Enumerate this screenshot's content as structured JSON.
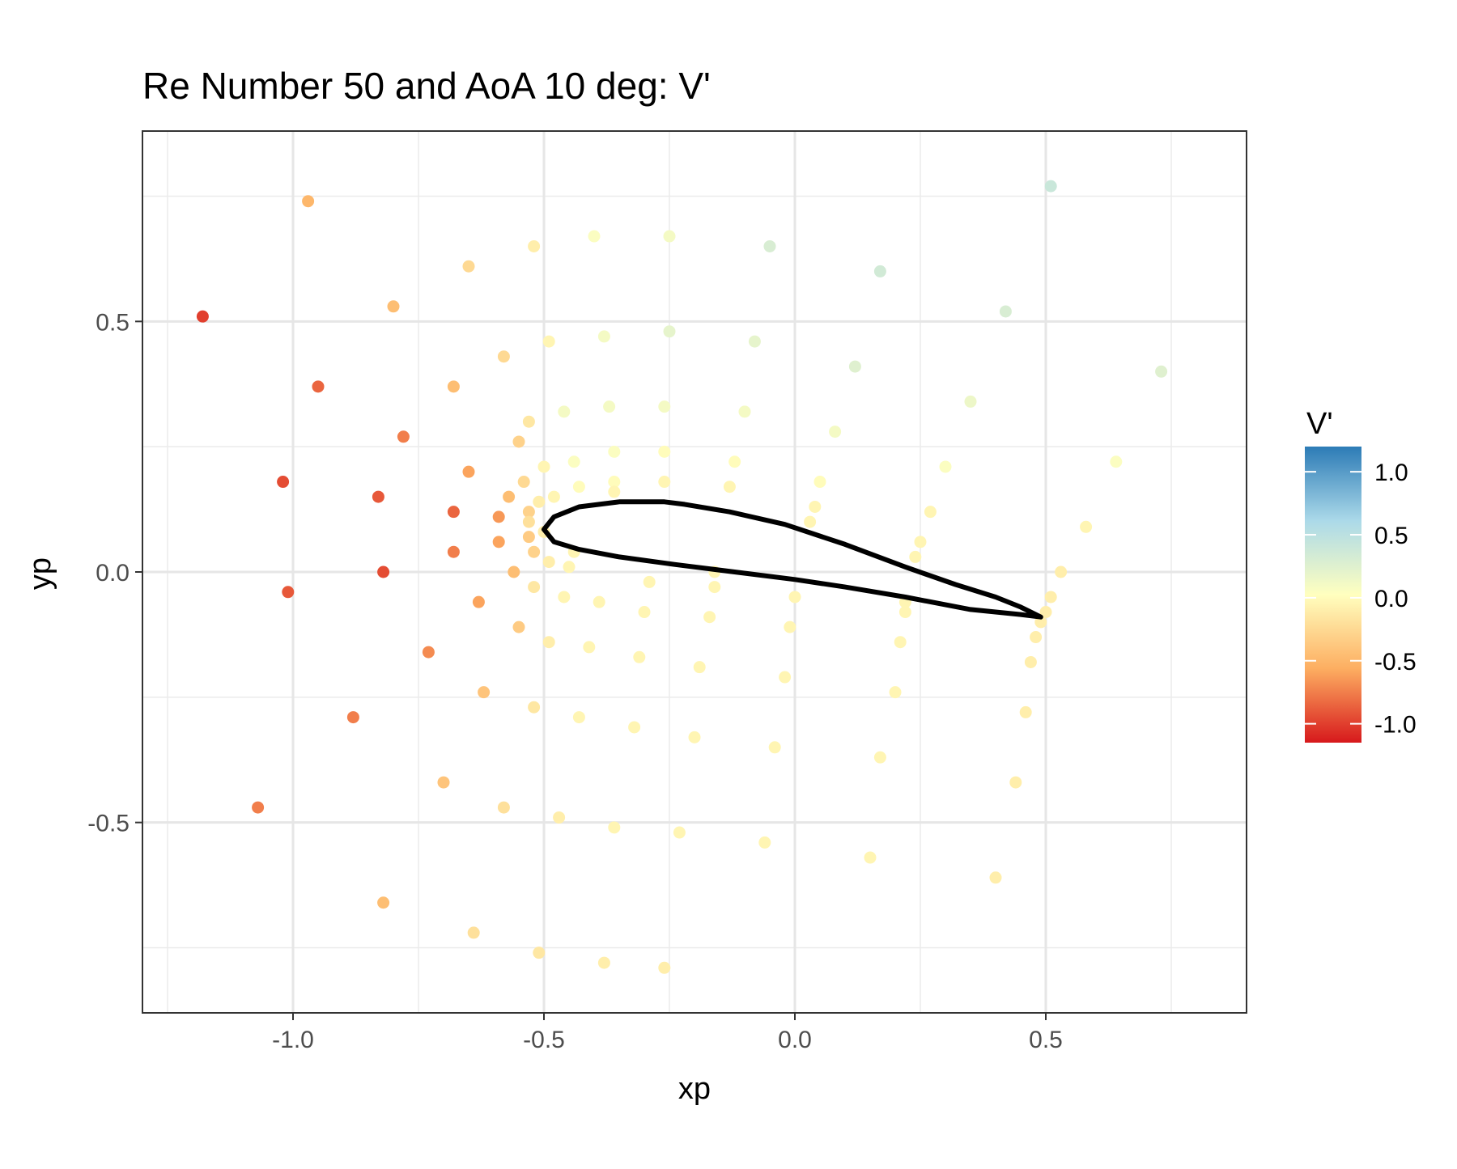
{
  "chart_data": {
    "type": "scatter",
    "title": "Re Number 50 and AoA 10 deg: V'",
    "xlabel": "xp",
    "ylabel": "yp",
    "xlim": [
      -1.3,
      0.9
    ],
    "ylim": [
      -0.88,
      0.88
    ],
    "x_ticks": [
      -1.0,
      -0.5,
      0.0,
      0.5
    ],
    "x_tick_labels": [
      "-1.0",
      "-0.5",
      "0.0",
      "0.5"
    ],
    "y_ticks": [
      -0.5,
      0.0,
      0.5
    ],
    "y_tick_labels": [
      "-0.5",
      "0.0",
      "0.5"
    ],
    "grid": true,
    "legend": {
      "title": "V'",
      "position": "right",
      "type": "colorbar",
      "min": -1.15,
      "max": 1.2,
      "ticks": [
        1.0,
        0.5,
        0.0,
        -0.5,
        -1.0
      ],
      "tick_labels": [
        "1.0",
        "0.5",
        "0.0",
        "-0.5",
        "-1.0"
      ],
      "palette": [
        "#d7191c",
        "#fdae61",
        "#ffffbf",
        "#abd9e9",
        "#2c7bb6"
      ]
    },
    "points": [
      {
        "x": -1.18,
        "y": 0.51,
        "v": -1.0
      },
      {
        "x": -0.97,
        "y": 0.74,
        "v": -0.5
      },
      {
        "x": -0.95,
        "y": 0.37,
        "v": -0.85
      },
      {
        "x": -1.02,
        "y": 0.18,
        "v": -0.95
      },
      {
        "x": -1.01,
        "y": -0.04,
        "v": -0.9
      },
      {
        "x": -0.83,
        "y": 0.15,
        "v": -0.9
      },
      {
        "x": -0.82,
        "y": 0.0,
        "v": -0.95
      },
      {
        "x": -0.78,
        "y": 0.27,
        "v": -0.75
      },
      {
        "x": -0.8,
        "y": 0.53,
        "v": -0.45
      },
      {
        "x": -1.07,
        "y": -0.47,
        "v": -0.75
      },
      {
        "x": -0.88,
        "y": -0.29,
        "v": -0.75
      },
      {
        "x": -0.82,
        "y": -0.66,
        "v": -0.45
      },
      {
        "x": -0.73,
        "y": -0.16,
        "v": -0.7
      },
      {
        "x": -0.7,
        "y": -0.42,
        "v": -0.4
      },
      {
        "x": -0.68,
        "y": 0.12,
        "v": -0.85
      },
      {
        "x": -0.68,
        "y": 0.04,
        "v": -0.75
      },
      {
        "x": -0.68,
        "y": 0.37,
        "v": -0.45
      },
      {
        "x": -0.65,
        "y": 0.61,
        "v": -0.25
      },
      {
        "x": -0.65,
        "y": 0.2,
        "v": -0.6
      },
      {
        "x": -0.63,
        "y": -0.06,
        "v": -0.6
      },
      {
        "x": -0.62,
        "y": -0.24,
        "v": -0.4
      },
      {
        "x": -0.59,
        "y": 0.11,
        "v": -0.65
      },
      {
        "x": -0.59,
        "y": 0.06,
        "v": -0.6
      },
      {
        "x": -0.64,
        "y": -0.72,
        "v": -0.2
      },
      {
        "x": -0.58,
        "y": 0.43,
        "v": -0.25
      },
      {
        "x": -0.57,
        "y": 0.15,
        "v": -0.45
      },
      {
        "x": -0.56,
        "y": 0.0,
        "v": -0.45
      },
      {
        "x": -0.55,
        "y": -0.11,
        "v": -0.35
      },
      {
        "x": -0.58,
        "y": -0.47,
        "v": -0.2
      },
      {
        "x": -0.55,
        "y": 0.26,
        "v": -0.3
      },
      {
        "x": -0.54,
        "y": 0.18,
        "v": -0.25
      },
      {
        "x": -0.53,
        "y": 0.12,
        "v": -0.3
      },
      {
        "x": -0.53,
        "y": 0.1,
        "v": -0.2
      },
      {
        "x": -0.53,
        "y": 0.07,
        "v": -0.35
      },
      {
        "x": -0.52,
        "y": 0.04,
        "v": -0.3
      },
      {
        "x": -0.52,
        "y": 0.65,
        "v": -0.1
      },
      {
        "x": -0.53,
        "y": 0.3,
        "v": -0.15
      },
      {
        "x": -0.52,
        "y": -0.03,
        "v": -0.15
      },
      {
        "x": -0.52,
        "y": -0.27,
        "v": -0.15
      },
      {
        "x": -0.51,
        "y": -0.76,
        "v": -0.15
      },
      {
        "x": -0.51,
        "y": 0.14,
        "v": -0.1
      },
      {
        "x": -0.5,
        "y": 0.21,
        "v": -0.05
      },
      {
        "x": -0.5,
        "y": 0.08,
        "v": -0.1
      },
      {
        "x": -0.49,
        "y": 0.46,
        "v": -0.05
      },
      {
        "x": -0.49,
        "y": 0.02,
        "v": -0.1
      },
      {
        "x": -0.49,
        "y": -0.14,
        "v": -0.1
      },
      {
        "x": -0.48,
        "y": 0.15,
        "v": -0.05
      },
      {
        "x": -0.47,
        "y": -0.49,
        "v": -0.1
      },
      {
        "x": -0.46,
        "y": 0.32,
        "v": 0.1
      },
      {
        "x": -0.46,
        "y": -0.05,
        "v": -0.05
      },
      {
        "x": -0.45,
        "y": 0.01,
        "v": -0.05
      },
      {
        "x": -0.44,
        "y": 0.22,
        "v": 0.05
      },
      {
        "x": -0.44,
        "y": 0.04,
        "v": -0.05
      },
      {
        "x": -0.43,
        "y": 0.17,
        "v": 0.0
      },
      {
        "x": -0.43,
        "y": -0.29,
        "v": -0.05
      },
      {
        "x": -0.41,
        "y": -0.15,
        "v": -0.05
      },
      {
        "x": -0.4,
        "y": 0.67,
        "v": 0.05
      },
      {
        "x": -0.39,
        "y": -0.06,
        "v": -0.05
      },
      {
        "x": -0.38,
        "y": 0.47,
        "v": 0.1
      },
      {
        "x": -0.38,
        "y": -0.78,
        "v": -0.1
      },
      {
        "x": -0.37,
        "y": 0.33,
        "v": 0.1
      },
      {
        "x": -0.36,
        "y": 0.24,
        "v": 0.05
      },
      {
        "x": -0.36,
        "y": 0.18,
        "v": 0.0
      },
      {
        "x": -0.36,
        "y": 0.16,
        "v": -0.05
      },
      {
        "x": -0.36,
        "y": -0.51,
        "v": -0.05
      },
      {
        "x": -0.32,
        "y": -0.31,
        "v": -0.05
      },
      {
        "x": -0.31,
        "y": -0.17,
        "v": -0.05
      },
      {
        "x": -0.3,
        "y": -0.08,
        "v": -0.05
      },
      {
        "x": -0.29,
        "y": -0.02,
        "v": -0.05
      },
      {
        "x": -0.25,
        "y": 0.67,
        "v": 0.1
      },
      {
        "x": -0.25,
        "y": 0.48,
        "v": 0.2
      },
      {
        "x": -0.26,
        "y": 0.33,
        "v": 0.1
      },
      {
        "x": -0.26,
        "y": 0.24,
        "v": 0.0
      },
      {
        "x": -0.26,
        "y": 0.18,
        "v": -0.05
      },
      {
        "x": -0.26,
        "y": -0.79,
        "v": -0.1
      },
      {
        "x": -0.23,
        "y": -0.52,
        "v": -0.05
      },
      {
        "x": -0.2,
        "y": -0.33,
        "v": -0.05
      },
      {
        "x": -0.19,
        "y": -0.19,
        "v": -0.05
      },
      {
        "x": -0.17,
        "y": -0.09,
        "v": -0.05
      },
      {
        "x": -0.16,
        "y": -0.03,
        "v": -0.05
      },
      {
        "x": -0.16,
        "y": 0.0,
        "v": -0.05
      },
      {
        "x": -0.13,
        "y": 0.17,
        "v": -0.05
      },
      {
        "x": -0.12,
        "y": 0.22,
        "v": 0.0
      },
      {
        "x": -0.1,
        "y": 0.32,
        "v": 0.1
      },
      {
        "x": -0.08,
        "y": 0.46,
        "v": 0.2
      },
      {
        "x": -0.05,
        "y": 0.65,
        "v": 0.3
      },
      {
        "x": -0.06,
        "y": -0.54,
        "v": -0.05
      },
      {
        "x": -0.04,
        "y": -0.35,
        "v": -0.05
      },
      {
        "x": -0.02,
        "y": -0.21,
        "v": -0.05
      },
      {
        "x": -0.01,
        "y": -0.11,
        "v": -0.05
      },
      {
        "x": 0.0,
        "y": -0.05,
        "v": -0.05
      },
      {
        "x": 0.03,
        "y": 0.1,
        "v": -0.05
      },
      {
        "x": 0.04,
        "y": 0.13,
        "v": -0.05
      },
      {
        "x": 0.05,
        "y": 0.18,
        "v": 0.0
      },
      {
        "x": 0.08,
        "y": 0.28,
        "v": 0.1
      },
      {
        "x": 0.12,
        "y": 0.41,
        "v": 0.25
      },
      {
        "x": 0.17,
        "y": 0.6,
        "v": 0.35
      },
      {
        "x": 0.15,
        "y": -0.57,
        "v": -0.05
      },
      {
        "x": 0.17,
        "y": -0.37,
        "v": -0.05
      },
      {
        "x": 0.2,
        "y": -0.24,
        "v": -0.05
      },
      {
        "x": 0.21,
        "y": -0.14,
        "v": -0.05
      },
      {
        "x": 0.22,
        "y": -0.08,
        "v": -0.05
      },
      {
        "x": 0.22,
        "y": -0.06,
        "v": -0.05
      },
      {
        "x": 0.24,
        "y": 0.03,
        "v": -0.05
      },
      {
        "x": 0.25,
        "y": 0.06,
        "v": -0.05
      },
      {
        "x": 0.27,
        "y": 0.12,
        "v": -0.05
      },
      {
        "x": 0.3,
        "y": 0.21,
        "v": 0.05
      },
      {
        "x": 0.35,
        "y": 0.34,
        "v": 0.15
      },
      {
        "x": 0.42,
        "y": 0.52,
        "v": 0.3
      },
      {
        "x": 0.51,
        "y": 0.77,
        "v": 0.4
      },
      {
        "x": 0.4,
        "y": -0.61,
        "v": -0.1
      },
      {
        "x": 0.44,
        "y": -0.42,
        "v": -0.1
      },
      {
        "x": 0.46,
        "y": -0.28,
        "v": -0.1
      },
      {
        "x": 0.47,
        "y": -0.18,
        "v": -0.1
      },
      {
        "x": 0.48,
        "y": -0.13,
        "v": -0.1
      },
      {
        "x": 0.49,
        "y": -0.1,
        "v": -0.1
      },
      {
        "x": 0.5,
        "y": -0.08,
        "v": -0.1
      },
      {
        "x": 0.51,
        "y": -0.05,
        "v": -0.1
      },
      {
        "x": 0.53,
        "y": 0.0,
        "v": -0.1
      },
      {
        "x": 0.58,
        "y": 0.09,
        "v": -0.05
      },
      {
        "x": 0.64,
        "y": 0.22,
        "v": 0.05
      },
      {
        "x": 0.73,
        "y": 0.4,
        "v": 0.25
      }
    ],
    "airfoil_outline": [
      [
        -0.26,
        0.14
      ],
      [
        -0.22,
        0.135
      ],
      [
        -0.13,
        0.12
      ],
      [
        -0.02,
        0.095
      ],
      [
        0.1,
        0.055
      ],
      [
        0.22,
        0.01
      ],
      [
        0.32,
        -0.025
      ],
      [
        0.4,
        -0.05
      ],
      [
        0.45,
        -0.07
      ],
      [
        0.49,
        -0.09
      ],
      [
        0.45,
        -0.085
      ],
      [
        0.35,
        -0.075
      ],
      [
        0.22,
        -0.05
      ],
      [
        0.1,
        -0.03
      ],
      [
        0.0,
        -0.015
      ],
      [
        -0.12,
        0.0
      ],
      [
        -0.24,
        0.015
      ],
      [
        -0.35,
        0.03
      ],
      [
        -0.43,
        0.045
      ],
      [
        -0.48,
        0.06
      ],
      [
        -0.5,
        0.085
      ],
      [
        -0.48,
        0.11
      ],
      [
        -0.43,
        0.13
      ],
      [
        -0.35,
        0.14
      ],
      [
        -0.26,
        0.14
      ]
    ]
  }
}
